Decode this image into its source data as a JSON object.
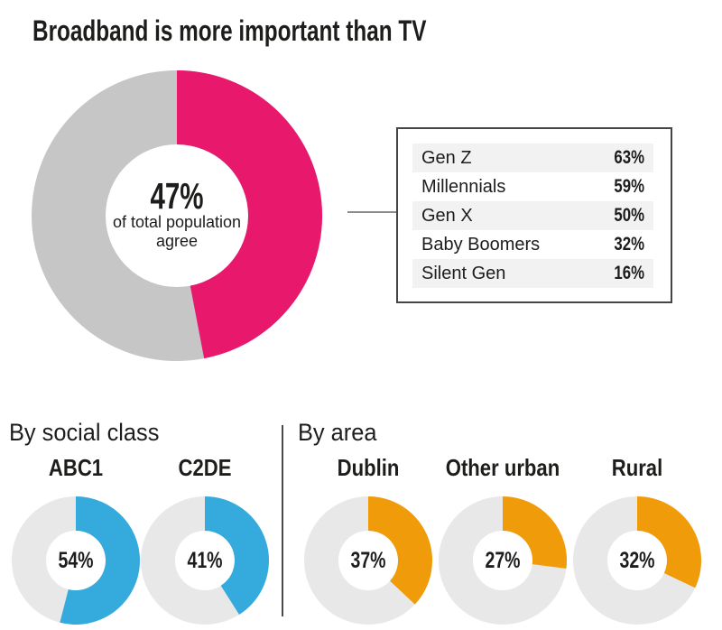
{
  "title": "Broadband is more important than TV",
  "colors": {
    "pink": "#e8186d",
    "gray_track_large": "#c6c6c6",
    "gray_track_small": "#e8e8e8",
    "blue": "#35aadd",
    "orange": "#f09b0a",
    "text": "#1d1d1b",
    "row_stripe": "#f2f2f2",
    "panel_border": "#454545",
    "connector_line": "#8c8c8c",
    "divider_line": "#4a4a4a"
  },
  "sections": [
    {
      "heading": "By social class"
    },
    {
      "heading": "By area"
    }
  ],
  "chart_data": {
    "type": "pie",
    "subtype": "donut",
    "title": "Broadband is more important than TV",
    "unit": "%",
    "charts": [
      {
        "id": "total",
        "label": "Total population",
        "value": 47,
        "center_text": "47%",
        "caption_lines": [
          "of total population",
          "agree"
        ],
        "color": "#e8186d",
        "track": "#c6c6c6"
      },
      {
        "id": "abc1",
        "group": "By social class",
        "label": "ABC1",
        "value": 54,
        "value_text": "54%",
        "color": "#35aadd",
        "track": "#e8e8e8"
      },
      {
        "id": "c2de",
        "group": "By social class",
        "label": "C2DE",
        "value": 41,
        "value_text": "41%",
        "color": "#35aadd",
        "track": "#e8e8e8"
      },
      {
        "id": "dublin",
        "group": "By area",
        "label": "Dublin",
        "value": 37,
        "value_text": "37%",
        "color": "#f09b0a",
        "track": "#e8e8e8"
      },
      {
        "id": "other_urban",
        "group": "By area",
        "label": "Other urban",
        "value": 27,
        "value_text": "27%",
        "color": "#f09b0a",
        "track": "#e8e8e8"
      },
      {
        "id": "rural",
        "group": "By area",
        "label": "Rural",
        "value": 32,
        "value_text": "32%",
        "color": "#f09b0a",
        "track": "#e8e8e8"
      }
    ],
    "generation_table": {
      "rows": [
        {
          "label": "Gen Z",
          "value": 63,
          "value_text": "63%"
        },
        {
          "label": "Millennials",
          "value": 59,
          "value_text": "59%"
        },
        {
          "label": "Gen X",
          "value": 50,
          "value_text": "50%"
        },
        {
          "label": "Baby Boomers",
          "value": 32,
          "value_text": "32%"
        },
        {
          "label": "Silent Gen",
          "value": 16,
          "value_text": "16%"
        }
      ]
    }
  }
}
